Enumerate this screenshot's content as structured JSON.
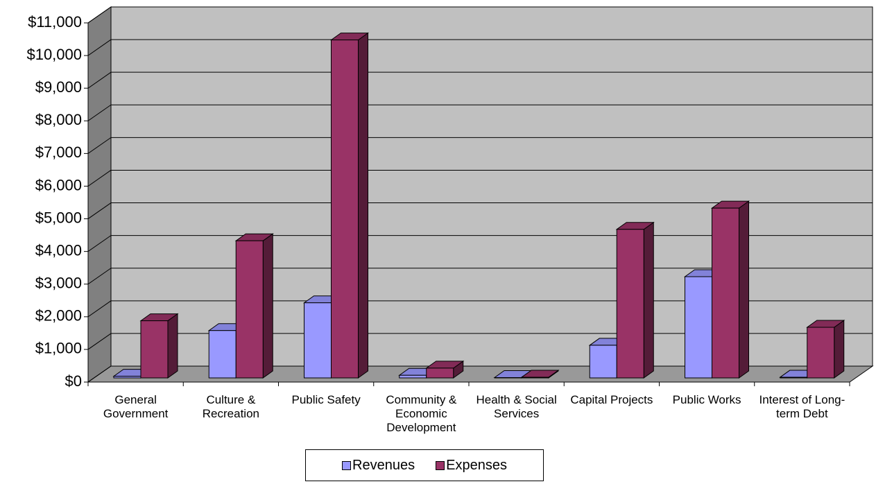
{
  "chart_data": {
    "type": "bar3d",
    "categories": [
      "General Government",
      "Culture & Recreation",
      "Public Safety",
      "Community & Economic Development",
      "Health & Social Services",
      "Capital Projects",
      "Public Works",
      "Interest of Long-term Debt"
    ],
    "series": [
      {
        "name": "Revenues",
        "color": "#9999ff",
        "values": [
          50,
          1450,
          2300,
          80,
          10,
          1000,
          3100,
          20
        ]
      },
      {
        "name": "Expenses",
        "color": "#993366",
        "values": [
          1750,
          4200,
          10350,
          300,
          20,
          4550,
          5200,
          1550
        ]
      }
    ],
    "ylim": [
      0,
      11000
    ],
    "yticks": [
      {
        "value": 0,
        "label": "$0"
      },
      {
        "value": 1000,
        "label": "$1,000"
      },
      {
        "value": 2000,
        "label": "$2,000"
      },
      {
        "value": 3000,
        "label": "$3,000"
      },
      {
        "value": 4000,
        "label": "$4,000"
      },
      {
        "value": 5000,
        "label": "$5,000"
      },
      {
        "value": 6000,
        "label": "$6,000"
      },
      {
        "value": 7000,
        "label": "$7,000"
      },
      {
        "value": 8000,
        "label": "$8,000"
      },
      {
        "value": 9000,
        "label": "$9,000"
      },
      {
        "value": 10000,
        "label": "$10,000"
      },
      {
        "value": 11000,
        "label": "$11,000"
      }
    ],
    "grid": true,
    "legend": "bottom"
  }
}
